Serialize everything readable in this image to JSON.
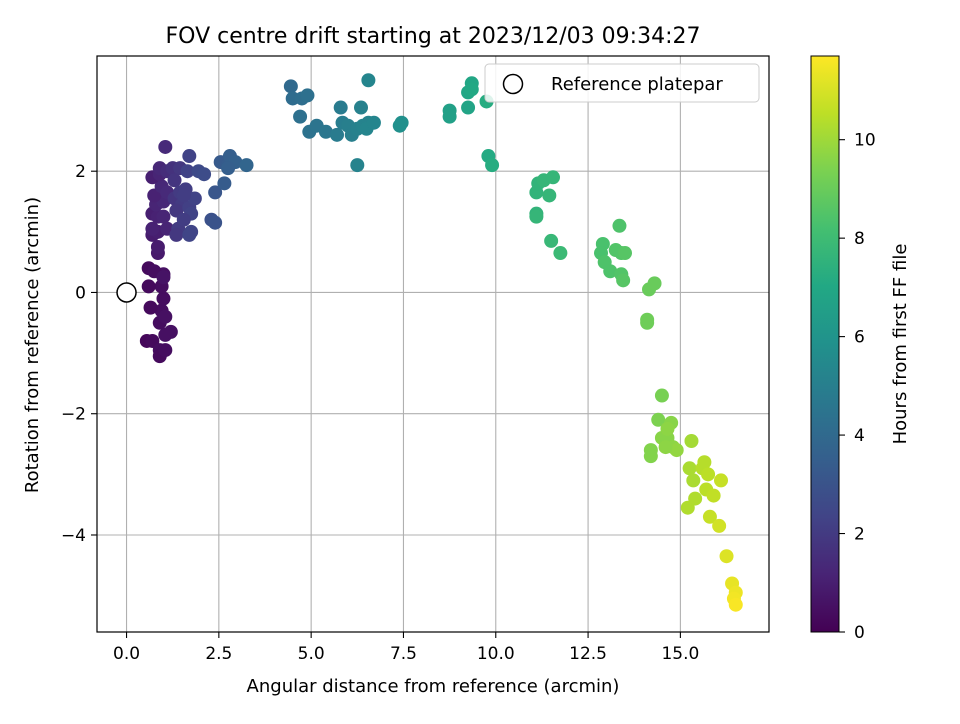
{
  "chart_data": {
    "type": "scatter",
    "title": "FOV centre drift starting at 2023/12/03 09:34:27",
    "xlabel": "Angular distance from reference (arcmin)",
    "ylabel": "Rotation from reference (arcmin)",
    "xlim": [
      -0.8,
      17.4
    ],
    "ylim": [
      -5.6,
      3.9
    ],
    "xticks": [
      0.0,
      2.5,
      5.0,
      7.5,
      10.0,
      12.5,
      15.0
    ],
    "xtick_labels": [
      "0.0",
      "2.5",
      "5.0",
      "7.5",
      "10.0",
      "12.5",
      "15.0"
    ],
    "yticks": [
      -4,
      -2,
      0,
      2
    ],
    "ytick_labels": [
      "−4",
      "−2",
      "0",
      "2"
    ],
    "grid": true,
    "legend": {
      "placement": "top-right",
      "entries": [
        "Reference platepar"
      ]
    },
    "reference_point": {
      "x": 0.0,
      "y": 0.0
    },
    "colorbar": {
      "label": "Hours from first FF file",
      "colormap": "viridis",
      "range": [
        0,
        11.7
      ],
      "ticks": [
        0,
        2,
        4,
        6,
        8,
        10
      ],
      "tick_labels": [
        "0",
        "2",
        "4",
        "6",
        "8",
        "10"
      ]
    },
    "series": [
      {
        "points": [
          {
            "x": 0.55,
            "y": -0.8,
            "h": 0.2
          },
          {
            "x": 0.7,
            "y": -0.8,
            "h": 0.3
          },
          {
            "x": 0.9,
            "y": -0.95,
            "h": 0.4
          },
          {
            "x": 0.9,
            "y": -1.05,
            "h": 0.3
          },
          {
            "x": 1.05,
            "y": -0.95,
            "h": 0.4
          },
          {
            "x": 1.05,
            "y": -0.7,
            "h": 0.5
          },
          {
            "x": 1.2,
            "y": -0.65,
            "h": 0.5
          },
          {
            "x": 0.9,
            "y": -0.5,
            "h": 0.4
          },
          {
            "x": 0.95,
            "y": -0.3,
            "h": 0.4
          },
          {
            "x": 1.05,
            "y": -0.4,
            "h": 0.5
          },
          {
            "x": 0.65,
            "y": -0.25,
            "h": 0.3
          },
          {
            "x": 1.0,
            "y": -0.1,
            "h": 0.4
          },
          {
            "x": 0.95,
            "y": 0.1,
            "h": 0.4
          },
          {
            "x": 0.6,
            "y": 0.1,
            "h": 0.3
          },
          {
            "x": 1.0,
            "y": 0.3,
            "h": 0.5
          },
          {
            "x": 0.6,
            "y": 0.4,
            "h": 0.3
          },
          {
            "x": 0.75,
            "y": 0.35,
            "h": 0.4
          },
          {
            "x": 1.0,
            "y": 0.25,
            "h": 0.6
          },
          {
            "x": 0.85,
            "y": 0.65,
            "h": 0.8
          },
          {
            "x": 0.85,
            "y": 0.75,
            "h": 0.9
          },
          {
            "x": 0.7,
            "y": 0.95,
            "h": 0.9
          },
          {
            "x": 0.85,
            "y": 1.0,
            "h": 1.0
          },
          {
            "x": 0.7,
            "y": 1.05,
            "h": 1.1
          },
          {
            "x": 1.1,
            "y": 1.05,
            "h": 1.2
          },
          {
            "x": 0.7,
            "y": 1.3,
            "h": 1.0
          },
          {
            "x": 0.85,
            "y": 1.25,
            "h": 1.1
          },
          {
            "x": 1.0,
            "y": 1.25,
            "h": 1.2
          },
          {
            "x": 0.8,
            "y": 1.45,
            "h": 1.2
          },
          {
            "x": 1.0,
            "y": 1.5,
            "h": 1.3
          },
          {
            "x": 0.75,
            "y": 1.6,
            "h": 1.1
          },
          {
            "x": 0.95,
            "y": 1.75,
            "h": 1.3
          },
          {
            "x": 1.1,
            "y": 1.65,
            "h": 1.4
          },
          {
            "x": 0.7,
            "y": 1.9,
            "h": 1.0
          },
          {
            "x": 0.9,
            "y": 1.95,
            "h": 1.2
          },
          {
            "x": 0.9,
            "y": 2.05,
            "h": 1.3
          },
          {
            "x": 1.1,
            "y": 2.0,
            "h": 1.5
          },
          {
            "x": 1.05,
            "y": 2.4,
            "h": 1.4
          },
          {
            "x": 1.25,
            "y": 2.05,
            "h": 1.7
          },
          {
            "x": 1.45,
            "y": 2.05,
            "h": 1.9
          },
          {
            "x": 1.3,
            "y": 1.85,
            "h": 1.8
          },
          {
            "x": 1.3,
            "y": 1.55,
            "h": 1.8
          },
          {
            "x": 1.45,
            "y": 1.65,
            "h": 2.0
          },
          {
            "x": 1.6,
            "y": 1.7,
            "h": 2.1
          },
          {
            "x": 1.5,
            "y": 1.45,
            "h": 2.0
          },
          {
            "x": 1.35,
            "y": 1.35,
            "h": 1.9
          },
          {
            "x": 1.7,
            "y": 1.4,
            "h": 2.2
          },
          {
            "x": 1.85,
            "y": 1.55,
            "h": 2.3
          },
          {
            "x": 1.75,
            "y": 1.3,
            "h": 2.3
          },
          {
            "x": 1.4,
            "y": 1.05,
            "h": 2.0
          },
          {
            "x": 1.35,
            "y": 0.95,
            "h": 1.9
          },
          {
            "x": 1.7,
            "y": 0.95,
            "h": 2.4
          },
          {
            "x": 1.75,
            "y": 1.0,
            "h": 2.4
          },
          {
            "x": 1.55,
            "y": 1.2,
            "h": 2.1
          },
          {
            "x": 1.65,
            "y": 2.0,
            "h": 2.3
          },
          {
            "x": 1.7,
            "y": 2.25,
            "h": 2.3
          },
          {
            "x": 1.95,
            "y": 2.0,
            "h": 2.6
          },
          {
            "x": 2.1,
            "y": 1.95,
            "h": 2.7
          },
          {
            "x": 1.55,
            "y": 1.6,
            "h": 2.1
          },
          {
            "x": 2.3,
            "y": 1.2,
            "h": 2.9
          },
          {
            "x": 2.4,
            "y": 1.15,
            "h": 3.0
          },
          {
            "x": 2.4,
            "y": 1.65,
            "h": 3.1
          },
          {
            "x": 2.55,
            "y": 2.15,
            "h": 3.3
          },
          {
            "x": 2.65,
            "y": 1.8,
            "h": 3.4
          },
          {
            "x": 2.75,
            "y": 2.1,
            "h": 3.4
          },
          {
            "x": 2.8,
            "y": 2.25,
            "h": 3.5
          },
          {
            "x": 2.95,
            "y": 2.15,
            "h": 3.6
          },
          {
            "x": 3.25,
            "y": 2.1,
            "h": 3.8
          },
          {
            "x": 2.75,
            "y": 2.05,
            "h": 3.5
          },
          {
            "x": 4.45,
            "y": 3.4,
            "h": 4.0
          },
          {
            "x": 4.5,
            "y": 3.2,
            "h": 4.1
          },
          {
            "x": 4.75,
            "y": 3.2,
            "h": 4.2
          },
          {
            "x": 4.9,
            "y": 3.25,
            "h": 4.3
          },
          {
            "x": 4.7,
            "y": 2.9,
            "h": 4.3
          },
          {
            "x": 4.95,
            "y": 2.65,
            "h": 4.4
          },
          {
            "x": 5.15,
            "y": 2.75,
            "h": 4.5
          },
          {
            "x": 5.4,
            "y": 2.65,
            "h": 4.6
          },
          {
            "x": 5.7,
            "y": 2.6,
            "h": 4.8
          },
          {
            "x": 5.8,
            "y": 3.05,
            "h": 4.8
          },
          {
            "x": 5.85,
            "y": 2.8,
            "h": 4.9
          },
          {
            "x": 6.0,
            "y": 2.75,
            "h": 5.0
          },
          {
            "x": 6.1,
            "y": 2.6,
            "h": 5.0
          },
          {
            "x": 6.25,
            "y": 2.7,
            "h": 5.1
          },
          {
            "x": 6.35,
            "y": 3.05,
            "h": 5.1
          },
          {
            "x": 6.4,
            "y": 2.75,
            "h": 5.2
          },
          {
            "x": 6.55,
            "y": 2.8,
            "h": 5.2
          },
          {
            "x": 6.5,
            "y": 2.7,
            "h": 5.3
          },
          {
            "x": 6.7,
            "y": 2.8,
            "h": 5.3
          },
          {
            "x": 6.55,
            "y": 3.5,
            "h": 5.3
          },
          {
            "x": 6.25,
            "y": 2.1,
            "h": 5.2
          },
          {
            "x": 7.4,
            "y": 2.75,
            "h": 5.8
          },
          {
            "x": 7.45,
            "y": 2.8,
            "h": 5.8
          },
          {
            "x": 8.75,
            "y": 3.0,
            "h": 6.6
          },
          {
            "x": 8.75,
            "y": 2.9,
            "h": 6.6
          },
          {
            "x": 9.25,
            "y": 3.05,
            "h": 6.8
          },
          {
            "x": 9.25,
            "y": 3.3,
            "h": 6.9
          },
          {
            "x": 9.35,
            "y": 3.45,
            "h": 6.9
          },
          {
            "x": 9.35,
            "y": 3.35,
            "h": 7.0
          },
          {
            "x": 9.75,
            "y": 3.15,
            "h": 7.2
          },
          {
            "x": 9.8,
            "y": 2.25,
            "h": 7.1
          },
          {
            "x": 9.9,
            "y": 2.1,
            "h": 7.2
          },
          {
            "x": 11.1,
            "y": 1.65,
            "h": 7.6
          },
          {
            "x": 11.15,
            "y": 1.8,
            "h": 7.6
          },
          {
            "x": 11.3,
            "y": 1.85,
            "h": 7.7
          },
          {
            "x": 11.55,
            "y": 1.9,
            "h": 7.7
          },
          {
            "x": 11.45,
            "y": 1.6,
            "h": 7.7
          },
          {
            "x": 11.1,
            "y": 1.3,
            "h": 7.6
          },
          {
            "x": 11.1,
            "y": 1.25,
            "h": 7.7
          },
          {
            "x": 11.5,
            "y": 0.85,
            "h": 7.8
          },
          {
            "x": 11.75,
            "y": 0.65,
            "h": 7.9
          },
          {
            "x": 12.9,
            "y": 0.8,
            "h": 8.3
          },
          {
            "x": 12.85,
            "y": 0.65,
            "h": 8.3
          },
          {
            "x": 12.95,
            "y": 0.5,
            "h": 8.4
          },
          {
            "x": 13.1,
            "y": 0.35,
            "h": 8.4
          },
          {
            "x": 13.25,
            "y": 0.7,
            "h": 8.5
          },
          {
            "x": 13.4,
            "y": 0.65,
            "h": 8.5
          },
          {
            "x": 13.5,
            "y": 0.65,
            "h": 8.6
          },
          {
            "x": 13.35,
            "y": 1.1,
            "h": 8.4
          },
          {
            "x": 13.4,
            "y": 0.3,
            "h": 8.5
          },
          {
            "x": 13.45,
            "y": 0.2,
            "h": 8.6
          },
          {
            "x": 14.15,
            "y": 0.05,
            "h": 9.0
          },
          {
            "x": 14.3,
            "y": 0.15,
            "h": 9.0
          },
          {
            "x": 14.1,
            "y": -0.45,
            "h": 9.1
          },
          {
            "x": 14.1,
            "y": -0.5,
            "h": 9.1
          },
          {
            "x": 14.5,
            "y": -1.7,
            "h": 9.3
          },
          {
            "x": 14.4,
            "y": -2.1,
            "h": 9.4
          },
          {
            "x": 14.2,
            "y": -2.6,
            "h": 9.5
          },
          {
            "x": 14.2,
            "y": -2.7,
            "h": 9.5
          },
          {
            "x": 14.5,
            "y": -2.4,
            "h": 9.6
          },
          {
            "x": 14.65,
            "y": -2.4,
            "h": 9.6
          },
          {
            "x": 14.75,
            "y": -2.15,
            "h": 9.6
          },
          {
            "x": 14.8,
            "y": -2.55,
            "h": 9.7
          },
          {
            "x": 14.9,
            "y": -2.6,
            "h": 9.8
          },
          {
            "x": 14.65,
            "y": -2.25,
            "h": 9.7
          },
          {
            "x": 14.6,
            "y": -2.55,
            "h": 9.7
          },
          {
            "x": 15.3,
            "y": -2.45,
            "h": 10.1
          },
          {
            "x": 15.25,
            "y": -2.9,
            "h": 10.2
          },
          {
            "x": 15.35,
            "y": -3.1,
            "h": 10.2
          },
          {
            "x": 15.2,
            "y": -3.55,
            "h": 10.3
          },
          {
            "x": 15.4,
            "y": -3.4,
            "h": 10.3
          },
          {
            "x": 15.6,
            "y": -2.9,
            "h": 10.4
          },
          {
            "x": 15.65,
            "y": -2.8,
            "h": 10.4
          },
          {
            "x": 15.75,
            "y": -3.0,
            "h": 10.5
          },
          {
            "x": 15.7,
            "y": -3.25,
            "h": 10.5
          },
          {
            "x": 15.9,
            "y": -3.35,
            "h": 10.6
          },
          {
            "x": 16.1,
            "y": -3.1,
            "h": 10.7
          },
          {
            "x": 15.8,
            "y": -3.7,
            "h": 10.7
          },
          {
            "x": 16.05,
            "y": -3.85,
            "h": 10.9
          },
          {
            "x": 16.25,
            "y": -4.35,
            "h": 11.1
          },
          {
            "x": 16.4,
            "y": -4.8,
            "h": 11.3
          },
          {
            "x": 16.5,
            "y": -4.95,
            "h": 11.4
          },
          {
            "x": 16.45,
            "y": -5.05,
            "h": 11.5
          },
          {
            "x": 16.5,
            "y": -5.15,
            "h": 11.6
          }
        ]
      }
    ]
  }
}
